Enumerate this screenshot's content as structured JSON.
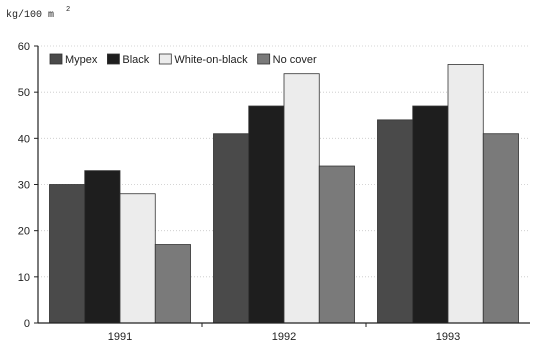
{
  "chart_data": {
    "type": "bar",
    "ylabel_unit": "kg/100 m",
    "ylabel_sup": "2",
    "categories": [
      "1991",
      "1992",
      "1993"
    ],
    "ylim": [
      0,
      60
    ],
    "yticks": [
      0,
      10,
      20,
      30,
      40,
      50,
      60
    ],
    "grid": true,
    "legend_position": "top-left",
    "series": [
      {
        "name": "Mypex",
        "values": [
          30,
          41,
          44
        ],
        "color": "#4a4a4a"
      },
      {
        "name": "Black",
        "values": [
          33,
          47,
          47
        ],
        "color": "#1e1e1e"
      },
      {
        "name": "White-on-black",
        "values": [
          28,
          54,
          56
        ],
        "color": "#ececec"
      },
      {
        "name": "No cover",
        "values": [
          17,
          34,
          41
        ],
        "color": "#7a7a7a"
      }
    ]
  }
}
